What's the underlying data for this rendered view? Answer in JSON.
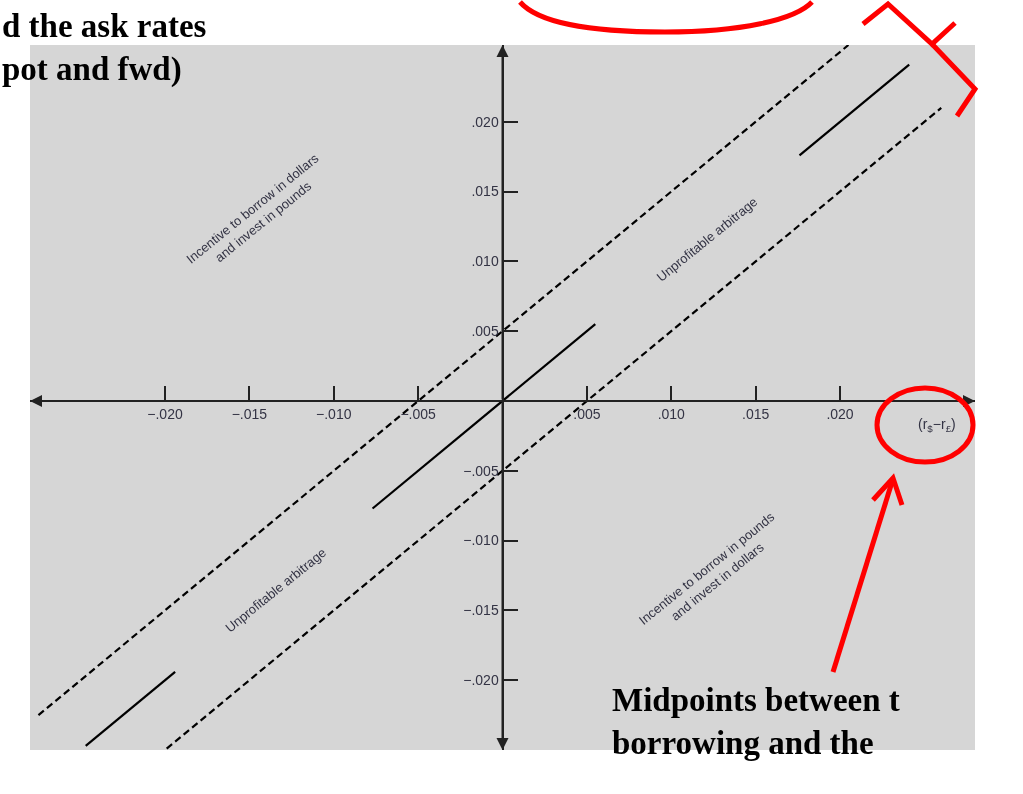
{
  "chart_data": {
    "type": "line",
    "xlabel": "(r$_{$}$−r$_{£}$)",
    "xlim": [
      -0.028,
      0.028
    ],
    "ylim": [
      -0.025,
      0.0255
    ],
    "xticks": [
      {
        "value": -0.02,
        "label": "−.020"
      },
      {
        "value": -0.015,
        "label": "−.015"
      },
      {
        "value": -0.01,
        "label": "−.010"
      },
      {
        "value": -0.005,
        "label": "−.005"
      },
      {
        "value": 0.005,
        "label": ".005"
      },
      {
        "value": 0.01,
        "label": ".010"
      },
      {
        "value": 0.015,
        "label": ".015"
      },
      {
        "value": 0.02,
        "label": ".020"
      }
    ],
    "yticks": [
      {
        "value": -0.02,
        "label": "−.020"
      },
      {
        "value": -0.015,
        "label": "−.015"
      },
      {
        "value": -0.01,
        "label": "−.010"
      },
      {
        "value": -0.005,
        "label": "−.005"
      },
      {
        "value": 0.005,
        "label": ".005"
      },
      {
        "value": 0.01,
        "label": ".010"
      },
      {
        "value": 0.015,
        "label": ".015"
      },
      {
        "value": 0.02,
        "label": ".020"
      }
    ],
    "series": [
      {
        "color": "#000000",
        "line_style": "solid",
        "x": [
          -0.0247,
          -0.0194,
          -0.015,
          -0.0077,
          0.0055,
          0.012,
          0.0176,
          0.0241
        ],
        "values": [
          -0.0247,
          -0.0194,
          null,
          -0.0077,
          0.0055,
          null,
          0.0176,
          0.0241
        ]
      },
      {
        "color": "#000000",
        "line_style": "dashed",
        "x": [
          -0.0275,
          0.0205
        ],
        "values": [
          -0.0225,
          0.0255
        ]
      },
      {
        "color": "#000000",
        "line_style": "dashed",
        "x": [
          -0.0199,
          0.026
        ],
        "values": [
          -0.0249,
          0.021
        ]
      }
    ],
    "annotations": [
      "Incentive to borrow in dollars\nand invest in pounds",
      "Unprofitable arbitrage",
      "Unprofitable arbitrage",
      "Incentive to borrow in pounds\nand invest in dollars",
      "d the ask rates\npot and fwd)",
      "Midpoints between t\nborrowing and the"
    ],
    "grid": false
  }
}
